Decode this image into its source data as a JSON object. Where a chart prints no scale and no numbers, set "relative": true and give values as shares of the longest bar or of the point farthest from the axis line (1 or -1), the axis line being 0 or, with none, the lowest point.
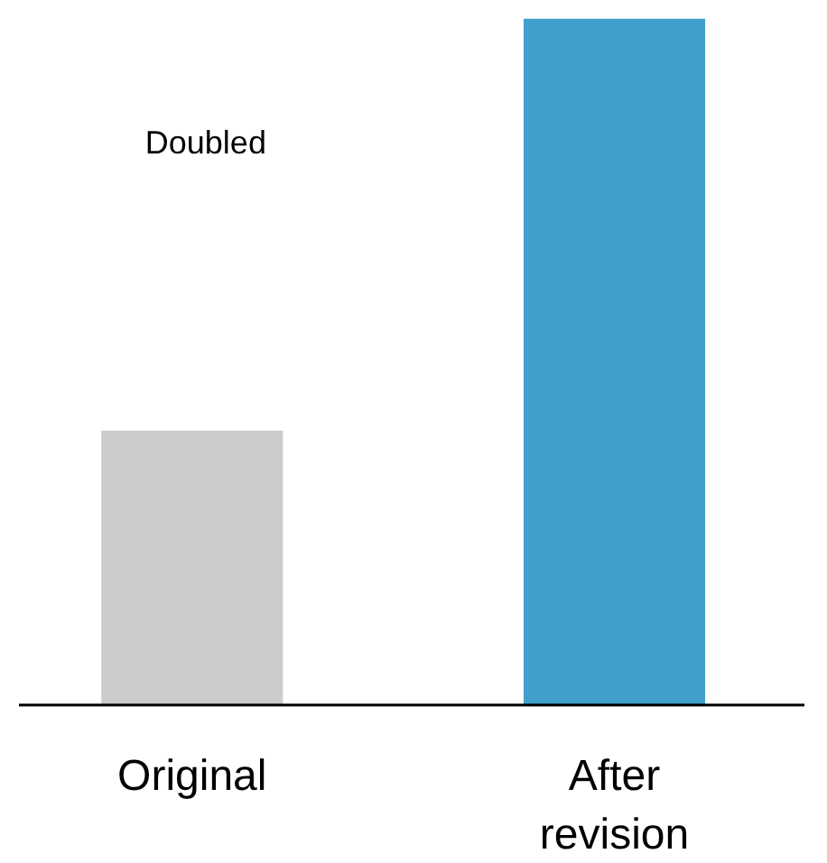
{
  "chart_data": {
    "type": "bar",
    "relative": true,
    "categories": [
      "Original",
      "After revision"
    ],
    "values": [
      0.4,
      1
    ],
    "colors": [
      "#cccccc",
      "#419fcb"
    ],
    "annotations": [
      "Doubled"
    ]
  }
}
